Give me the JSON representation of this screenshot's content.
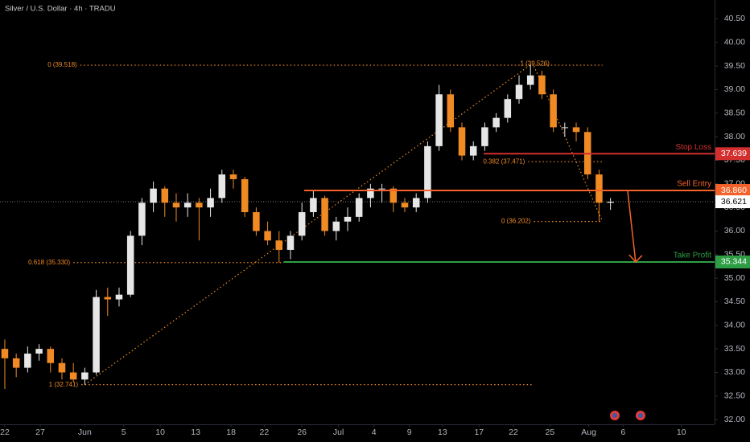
{
  "chart_data": {
    "type": "candlestick",
    "title": "Silver / U.S. Dollar · 4h · TRADU",
    "xlim": [
      -0.42,
      62.11
    ],
    "ylim": [
      31.9,
      40.9
    ],
    "xticks": [
      {
        "value": 0,
        "label": "22"
      },
      {
        "value": 3.1,
        "label": "27"
      },
      {
        "value": 7.0,
        "label": "Jun"
      },
      {
        "value": 10.4,
        "label": "5"
      },
      {
        "value": 13.6,
        "label": "10"
      },
      {
        "value": 16.7,
        "label": "13"
      },
      {
        "value": 19.8,
        "label": "18"
      },
      {
        "value": 22.7,
        "label": "22"
      },
      {
        "value": 26.0,
        "label": "26"
      },
      {
        "value": 29.2,
        "label": "Jul"
      },
      {
        "value": 32.3,
        "label": "4"
      },
      {
        "value": 35.4,
        "label": "9"
      },
      {
        "value": 38.3,
        "label": "13"
      },
      {
        "value": 41.5,
        "label": "17"
      },
      {
        "value": 44.5,
        "label": "22"
      },
      {
        "value": 47.7,
        "label": "25"
      },
      {
        "value": 51.1,
        "label": "Aug"
      },
      {
        "value": 54.1,
        "label": "6"
      },
      {
        "value": 59.2,
        "label": "10"
      }
    ],
    "yticks": [
      {
        "value": 32,
        "label": "32.00"
      },
      {
        "value": 32.5,
        "label": "32.50"
      },
      {
        "value": 33,
        "label": "33.00"
      },
      {
        "value": 33.5,
        "label": "33.50"
      },
      {
        "value": 34,
        "label": "34.00"
      },
      {
        "value": 34.5,
        "label": "34.50"
      },
      {
        "value": 35,
        "label": "35.00"
      },
      {
        "value": 35.5,
        "label": "35.50"
      },
      {
        "value": 36,
        "label": "36.00"
      },
      {
        "value": 36.5,
        "label": "36.50"
      },
      {
        "value": 37,
        "label": "37.00"
      },
      {
        "value": 37.5,
        "label": "37.50"
      },
      {
        "value": 38,
        "label": "38.00"
      },
      {
        "value": 38.5,
        "label": "38.50"
      },
      {
        "value": 39,
        "label": "39.00"
      },
      {
        "value": 39.5,
        "label": "39.50"
      },
      {
        "value": 40,
        "label": "40.00"
      },
      {
        "value": 40.5,
        "label": "40.50"
      }
    ],
    "up_color": "#e6e6e6",
    "down_color": "#f08a24",
    "candles": {
      "x": [
        0,
        1,
        2,
        3,
        4,
        5,
        6,
        7,
        8,
        9,
        10,
        11,
        12,
        13,
        14,
        15,
        16,
        17,
        18,
        19,
        20,
        21,
        22,
        23,
        24,
        25,
        26,
        27,
        28,
        29,
        30,
        31,
        32,
        33,
        34,
        35,
        36,
        37,
        38,
        39,
        40,
        41,
        42,
        43,
        44,
        45,
        46,
        47,
        48,
        49,
        50,
        51,
        52,
        53
      ],
      "open": [
        33.5,
        33.3,
        33.1,
        33.4,
        33.5,
        33.2,
        33.0,
        32.85,
        33.0,
        34.6,
        34.55,
        34.65,
        35.9,
        36.6,
        36.9,
        36.6,
        36.5,
        36.6,
        36.5,
        36.7,
        37.2,
        37.1,
        36.4,
        36.0,
        35.8,
        35.6,
        35.9,
        36.4,
        36.7,
        36.0,
        36.2,
        36.3,
        36.7,
        36.9,
        36.9,
        36.6,
        36.5,
        36.7,
        37.8,
        38.9,
        38.2,
        37.6,
        37.8,
        38.2,
        38.4,
        38.8,
        39.1,
        39.3,
        38.9,
        38.2,
        38.2,
        38.1,
        37.2,
        36.6
      ],
      "high": [
        33.7,
        33.4,
        33.55,
        33.6,
        33.55,
        33.3,
        33.2,
        33.1,
        34.75,
        34.8,
        34.8,
        36.0,
        36.7,
        37.05,
        36.95,
        36.8,
        36.8,
        36.7,
        36.9,
        37.3,
        37.3,
        37.15,
        36.5,
        36.2,
        36.0,
        36.0,
        36.6,
        36.85,
        36.75,
        36.3,
        36.5,
        36.8,
        37.0,
        37.0,
        36.95,
        36.7,
        36.8,
        37.9,
        39.1,
        39.0,
        38.3,
        37.9,
        38.3,
        38.5,
        38.9,
        39.3,
        39.53,
        39.4,
        39.0,
        38.3,
        38.3,
        38.2,
        37.3,
        36.7
      ],
      "low": [
        32.65,
        32.9,
        33.0,
        33.25,
        33.0,
        32.85,
        32.8,
        32.74,
        32.95,
        34.2,
        34.4,
        34.6,
        35.7,
        36.4,
        36.3,
        36.2,
        36.3,
        35.8,
        36.3,
        36.6,
        36.9,
        36.3,
        35.9,
        35.7,
        35.33,
        35.4,
        35.8,
        36.3,
        35.9,
        35.8,
        36.0,
        36.2,
        36.5,
        36.6,
        36.4,
        36.4,
        36.4,
        36.6,
        37.7,
        38.1,
        37.5,
        37.5,
        37.7,
        38.1,
        38.3,
        38.7,
        39.0,
        38.8,
        38.1,
        38.0,
        37.9,
        37.1,
        36.2,
        36.45
      ],
      "close": [
        33.3,
        33.1,
        33.4,
        33.5,
        33.2,
        33.0,
        32.85,
        33.0,
        34.6,
        34.55,
        34.65,
        35.9,
        36.6,
        36.9,
        36.6,
        36.5,
        36.6,
        36.5,
        36.7,
        37.2,
        37.1,
        36.4,
        36.0,
        35.8,
        35.6,
        35.9,
        36.4,
        36.7,
        36.0,
        36.2,
        36.3,
        36.7,
        36.9,
        36.9,
        36.6,
        36.5,
        36.7,
        37.8,
        38.9,
        38.2,
        37.6,
        37.8,
        38.2,
        38.4,
        38.8,
        39.1,
        39.3,
        38.9,
        38.2,
        38.2,
        38.1,
        37.2,
        36.6,
        36.621
      ]
    },
    "levels": [
      {
        "name": "Stop Loss",
        "value": 37.639,
        "label": "37.639",
        "color": "#d32f2f",
        "x0": 41.9
      },
      {
        "name": "Sell Entry",
        "value": 36.86,
        "label": "36.860",
        "color": "#f4622a",
        "x0": 26.2
      },
      {
        "name": "Take Profit",
        "value": 35.344,
        "label": "35.344",
        "color": "#2e9e45",
        "x0": 24.4
      }
    ],
    "last_price": {
      "value": 36.621,
      "label": "36.621"
    },
    "fib_lines": [
      {
        "label": "0 (39.518)",
        "value": 39.518,
        "x0": 6.6,
        "x1": 52.3
      },
      {
        "label": "0.382 (37.471)",
        "value": 37.471,
        "x0": 45.8,
        "x1": 52.3
      },
      {
        "label": "0 (36.202)",
        "value": 36.202,
        "x0": 46.3,
        "x1": 52.3
      },
      {
        "label": "0.618 (35.330)",
        "value": 35.33,
        "x0": 6.0,
        "x1": 24.4
      },
      {
        "label": "1 (32.741)",
        "value": 32.741,
        "x0": 6.7,
        "x1": 46.3
      }
    ],
    "fib_notes": [
      {
        "label": "1 (39.526)",
        "value": 39.526,
        "x": 45.1
      }
    ],
    "fib_color": "#f08a24",
    "trendlines": [
      {
        "x": [
          7.0,
          46.0
        ],
        "y": [
          32.741,
          39.526
        ]
      },
      {
        "x": [
          46.3,
          52.3
        ],
        "y": [
          39.5,
          36.202
        ]
      }
    ],
    "arrow": {
      "x": [
        54.5,
        55.2
      ],
      "y": [
        36.86,
        35.344
      ],
      "color": "#f4622a"
    }
  }
}
